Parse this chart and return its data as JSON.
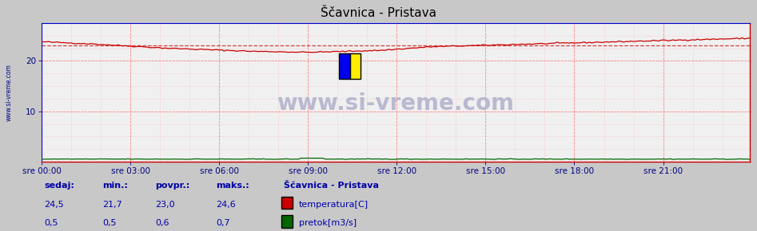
{
  "title": "Ščavnica - Pristava",
  "bg_color": "#c8c8c8",
  "plot_bg_color": "#f0f0f0",
  "ylim": [
    0,
    27.5
  ],
  "yticks": [
    10,
    20
  ],
  "xtick_labels": [
    "sre 00:00",
    "sre 03:00",
    "sre 06:00",
    "sre 09:00",
    "sre 12:00",
    "sre 15:00",
    "sre 18:00",
    "sre 21:00"
  ],
  "n_points": 288,
  "temp_color": "#cc0000",
  "pretok_color": "#006600",
  "avg_value": 23.0,
  "temp_min": 21.7,
  "temp_max": 24.6,
  "watermark": "www.si-vreme.com",
  "watermark_color": "#b0b0cc",
  "legend_title": "Ščavnica - Pristava",
  "legend_items": [
    {
      "label": "temperatura[C]",
      "color": "#cc0000"
    },
    {
      "label": "pretok[m3/s]",
      "color": "#006600"
    }
  ],
  "stats_labels": [
    "sedaj:",
    "min.:",
    "povpr.:",
    "maks.:"
  ],
  "stats_temp": [
    "24,5",
    "21,7",
    "23,0",
    "24,6"
  ],
  "stats_pretok": [
    "0,5",
    "0,5",
    "0,6",
    "0,7"
  ]
}
